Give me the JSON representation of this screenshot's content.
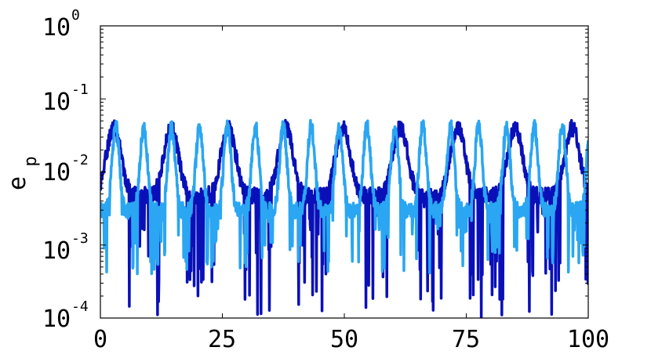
{
  "chart_data": {
    "type": "line",
    "title": "",
    "xlabel": "",
    "ylabel": {
      "base": "e",
      "subscript": "p"
    },
    "xlim": [
      0,
      100
    ],
    "ylim": [
      0.0001,
      1
    ],
    "yscale": "log",
    "grid": false,
    "legend": "none",
    "x_ticks": [
      {
        "value": 0,
        "label": "0"
      },
      {
        "value": 25,
        "label": "25"
      },
      {
        "value": 50,
        "label": "50"
      },
      {
        "value": 75,
        "label": "75"
      },
      {
        "value": 100,
        "label": "100"
      }
    ],
    "y_ticks": [
      {
        "value": 0.0001,
        "base": "10",
        "exp": "-4"
      },
      {
        "value": 0.001,
        "base": "10",
        "exp": "-3"
      },
      {
        "value": 0.01,
        "base": "10",
        "exp": "-2"
      },
      {
        "value": 0.1,
        "base": "10",
        "exp": "-1"
      },
      {
        "value": 1,
        "base": "10",
        "exp": "0"
      }
    ],
    "series": [
      {
        "color": "#0a10b8",
        "line_width": 3.5,
        "period": 11.75,
        "phase": 8.6,
        "peak": 0.04,
        "floor": 0.0048,
        "dip_min": 0.0001,
        "seed": 3
      },
      {
        "color": "#2aa6f2",
        "line_width": 3.5,
        "period": 5.72,
        "phase": 0.3,
        "peak": 0.042,
        "floor": 0.003,
        "dip_min": 0.0004,
        "seed": 11
      }
    ]
  }
}
